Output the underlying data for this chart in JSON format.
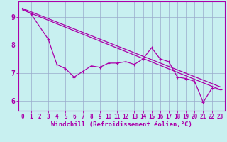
{
  "title": "",
  "xlabel": "Windchill (Refroidissement éolien,°C)",
  "ylabel": "",
  "bg_color": "#c8f0f0",
  "line_color": "#aa00aa",
  "grid_color": "#99aacc",
  "xlim": [
    -0.5,
    23.5
  ],
  "ylim": [
    5.65,
    9.55
  ],
  "xticks": [
    0,
    1,
    2,
    3,
    4,
    5,
    6,
    7,
    8,
    9,
    10,
    11,
    12,
    13,
    14,
    15,
    16,
    17,
    18,
    19,
    20,
    21,
    22,
    23
  ],
  "yticks": [
    6,
    7,
    8,
    9
  ],
  "line_upper": {
    "x": [
      0,
      1
    ],
    "y": [
      9.3,
      9.15
    ]
  },
  "line_lower_diag": {
    "x": [
      0,
      23
    ],
    "y": [
      9.25,
      6.4
    ]
  },
  "line_upper_diag": {
    "x": [
      0,
      23
    ],
    "y": [
      9.3,
      6.5
    ]
  },
  "line_jagged": {
    "x": [
      0,
      1,
      3,
      4,
      5,
      6,
      7,
      8,
      9,
      10,
      11,
      12,
      13,
      14,
      15,
      16,
      17,
      18,
      19,
      20,
      21,
      22,
      23
    ],
    "y": [
      9.3,
      9.1,
      8.2,
      7.3,
      7.15,
      6.85,
      7.05,
      7.25,
      7.2,
      7.35,
      7.35,
      7.4,
      7.3,
      7.5,
      7.9,
      7.5,
      7.4,
      6.85,
      6.8,
      6.7,
      5.95,
      6.45,
      6.4
    ]
  },
  "marker": "+",
  "marker_size": 3,
  "linewidth": 0.9,
  "tick_fontsize": 5.5,
  "label_fontsize": 6.5
}
